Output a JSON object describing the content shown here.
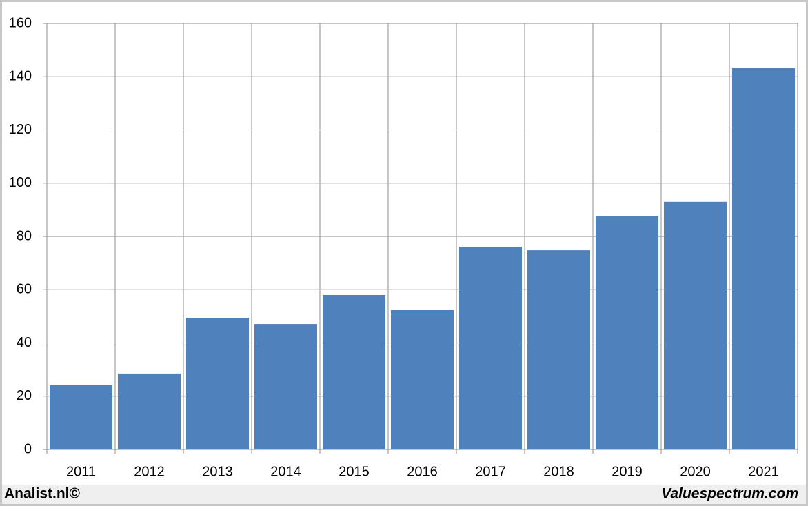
{
  "chart_data": {
    "type": "bar",
    "categories": [
      "2011",
      "2012",
      "2013",
      "2014",
      "2015",
      "2016",
      "2017",
      "2018",
      "2019",
      "2020",
      "2021"
    ],
    "values": [
      24.1,
      28.5,
      49.4,
      47.1,
      58,
      52.3,
      76.1,
      74.8,
      87.5,
      93,
      143.2
    ],
    "color": "#4f81bd",
    "ylim": [
      0,
      160
    ],
    "yticks": [
      0,
      20,
      40,
      60,
      80,
      100,
      120,
      140,
      160
    ],
    "grid": true
  },
  "footer": {
    "left": "Analist.nl©",
    "right": "Valuespectrum.com"
  }
}
